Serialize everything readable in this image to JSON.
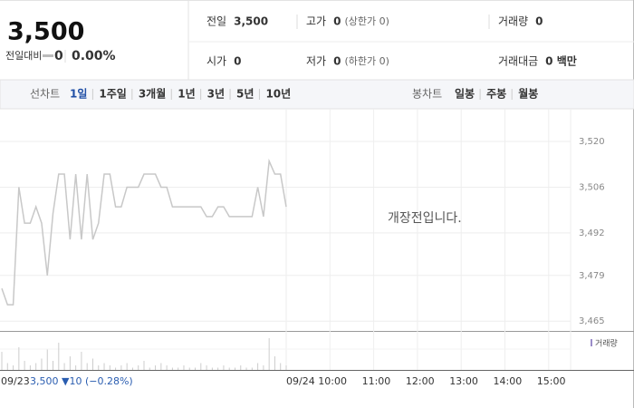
{
  "header": {
    "price": "3,500",
    "change_label": "전일대비",
    "change": "0",
    "change_rate": "0.00%"
  },
  "stats": [
    {
      "label": "전일",
      "value": "3,500"
    },
    {
      "label": "고가",
      "value": "0",
      "note": "(상한가 0)"
    },
    {
      "label": "거래량",
      "value": "0"
    },
    {
      "label": "시가",
      "value": "0"
    },
    {
      "label": "저가",
      "value": "0",
      "note": "(하한가 0)"
    },
    {
      "label": "거래대금",
      "value": "0 백만"
    }
  ],
  "tabs": {
    "line_label": "선차트",
    "line_periods": [
      "1일",
      "1주일",
      "3개월",
      "1년",
      "3년",
      "5년",
      "10년"
    ],
    "selected_period": 0,
    "candle_label": "봉차트",
    "candle_periods": [
      "일봉",
      "주봉",
      "월봉"
    ]
  },
  "chart_data": {
    "type": "line",
    "message": "개장전입니다.",
    "volume_label": "거래량",
    "prev_date": "09/23",
    "prev_summary": "3,500 ▼10 (−0.28%)",
    "time_labels": [
      "09/24",
      "10:00",
      "11:00",
      "12:00",
      "13:00",
      "14:00",
      "15:00"
    ],
    "ylim": [
      3462,
      3530
    ],
    "yticks": [
      {
        "value": 3520,
        "label": "3,520"
      },
      {
        "value": 3506,
        "label": "3,506"
      },
      {
        "value": 3492,
        "label": "3,492"
      },
      {
        "value": 3479,
        "label": "3,479"
      },
      {
        "value": 3465,
        "label": "3,465"
      }
    ],
    "color": "#c8c8c8",
    "values": [
      3475,
      3470,
      3470,
      3506,
      3495,
      3495,
      3500,
      3495,
      3479,
      3498,
      3510,
      3510,
      3490,
      3510,
      3490,
      3510,
      3490,
      3495,
      3510,
      3510,
      3500,
      3500,
      3506,
      3506,
      3506,
      3510,
      3510,
      3510,
      3506,
      3506,
      3500,
      3500,
      3500,
      3500,
      3500,
      3500,
      3497,
      3497,
      3500,
      3500,
      3497,
      3497,
      3497,
      3497,
      3497,
      3506,
      3497,
      3514,
      3510,
      3510,
      3500
    ],
    "volume": [
      8,
      3,
      2,
      10,
      4,
      2,
      3,
      5,
      9,
      4,
      12,
      3,
      6,
      2,
      8,
      3,
      5,
      2,
      3,
      2,
      1,
      2,
      3,
      1,
      2,
      4,
      1,
      2,
      3,
      2,
      1,
      1,
      2,
      1,
      1,
      3,
      2,
      1,
      1,
      2,
      1,
      1,
      2,
      1,
      1,
      3,
      2,
      14,
      6,
      3,
      2
    ]
  }
}
